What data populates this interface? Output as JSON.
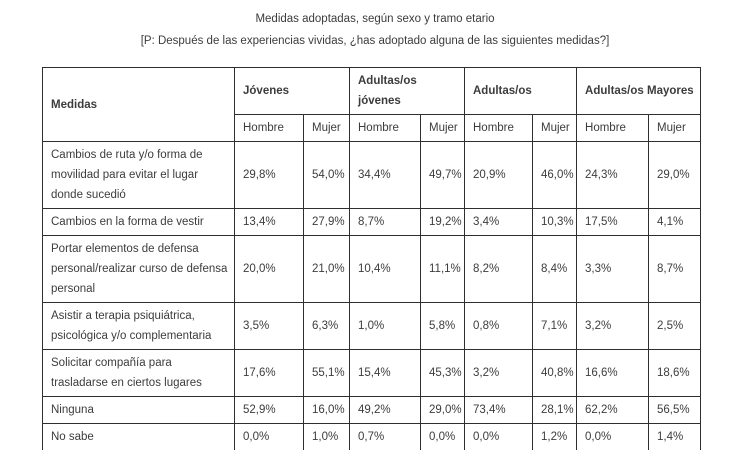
{
  "page": {
    "title": "Medidas adoptadas, según sexo y tramo etario",
    "subtitle": "[P: Después de las experiencias vividas, ¿has adoptado alguna de las siguientes medidas?]"
  },
  "colors": {
    "text": "#3c3c3c",
    "border": "#2e2e2e",
    "background": "#ffffff"
  },
  "chart_data": {
    "type": "table",
    "title": "Medidas adoptadas, según sexo y tramo etario",
    "corner_header": "Medidas",
    "column_groups": [
      {
        "label": "Jóvenes",
        "columns": [
          "Hombre",
          "Mujer"
        ]
      },
      {
        "label": "Adultas/os jóvenes",
        "columns": [
          "Hombre",
          "Mujer"
        ]
      },
      {
        "label": "Adultas/os",
        "columns": [
          "Hombre",
          "Mujer"
        ]
      },
      {
        "label": "Adultas/os Mayores",
        "columns": [
          "Hombre",
          "Mujer"
        ]
      }
    ],
    "rows": [
      {
        "label": "Cambios de ruta y/o forma de movilidad para evitar el lugar donde sucedió",
        "lines": 3,
        "values": [
          "29,8%",
          "54,0%",
          "34,4%",
          "49,7%",
          "20,9%",
          "46,0%",
          "24,3%",
          "29,0%"
        ]
      },
      {
        "label": "Cambios en la forma de vestir",
        "lines": 1,
        "values": [
          "13,4%",
          "27,9%",
          "8,7%",
          "19,2%",
          "3,4%",
          "10,3%",
          "17,5%",
          "4,1%"
        ]
      },
      {
        "label": "Portar elementos de defensa personal/realizar curso de defensa personal",
        "lines": 3,
        "values": [
          "20,0%",
          "21,0%",
          "10,4%",
          "11,1%",
          "8,2%",
          "8,4%",
          "3,3%",
          "8,7%"
        ]
      },
      {
        "label": "Asistir a terapia psiquiátrica, psicológica y/o complementaria",
        "lines": 2,
        "values": [
          "3,5%",
          "6,3%",
          "1,0%",
          "5,8%",
          "0,8%",
          "7,1%",
          "3,2%",
          "2,5%"
        ]
      },
      {
        "label": "Solicitar compañía para trasladarse en ciertos lugares",
        "lines": 2,
        "values": [
          "17,6%",
          "55,1%",
          "15,4%",
          "45,3%",
          "3,2%",
          "40,8%",
          "16,6%",
          "18,6%"
        ]
      },
      {
        "label": "Ninguna",
        "lines": 1,
        "values": [
          "52,9%",
          "16,0%",
          "49,2%",
          "29,0%",
          "73,4%",
          "28,1%",
          "62,2%",
          "56,5%"
        ]
      },
      {
        "label": "No sabe",
        "lines": 1,
        "values": [
          "0,0%",
          "1,0%",
          "0,7%",
          "0,0%",
          "0,0%",
          "1,2%",
          "0,0%",
          "1,4%"
        ]
      }
    ]
  }
}
